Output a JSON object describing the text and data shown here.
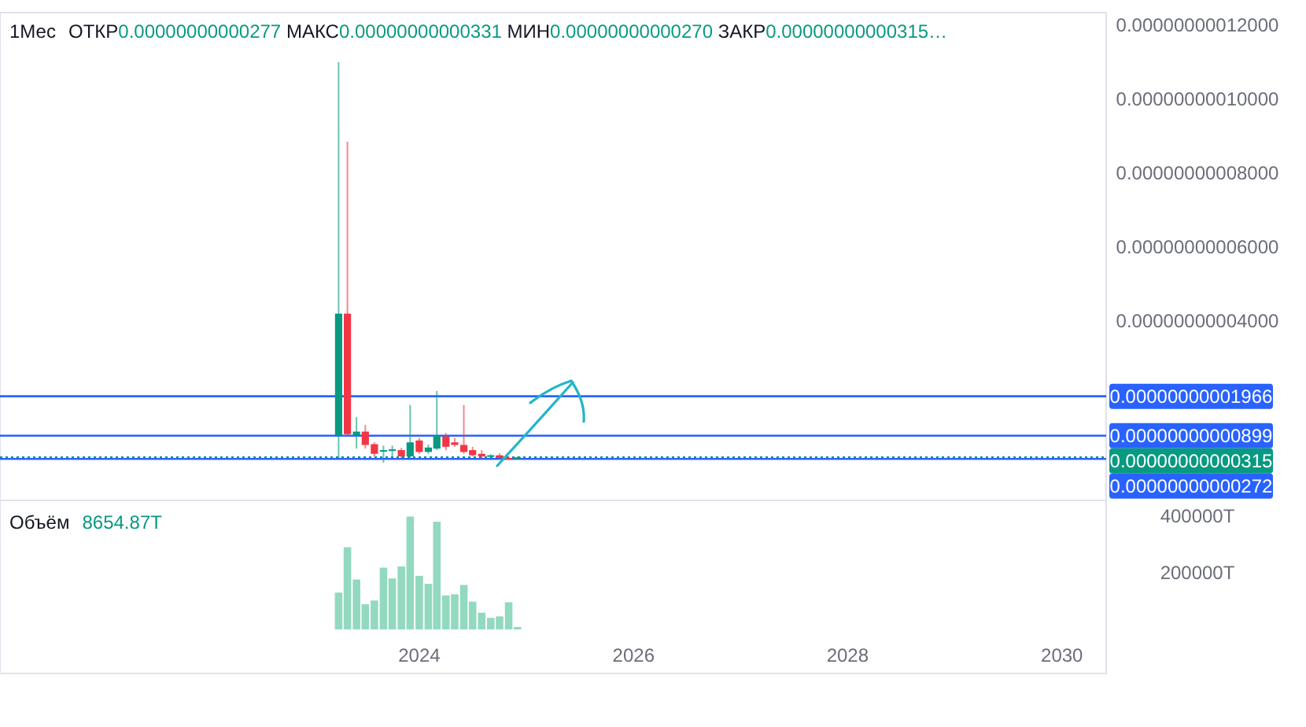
{
  "chart_data": [
    {
      "type": "candlestick",
      "title": "1Мес",
      "subtitle": "ОТКР0.00000000000277  МАКС0.00000000000331  МИН0.00000000000270  ЗАКР0.00000000000315…",
      "x": [
        "2023-04",
        "2023-05",
        "2023-06",
        "2023-07",
        "2023-08",
        "2023-09",
        "2023-10",
        "2023-11",
        "2023-12",
        "2024-01",
        "2024-02",
        "2024-03",
        "2024-04",
        "2024-05",
        "2024-06",
        "2024-07",
        "2024-08",
        "2024-09",
        "2024-10",
        "2024-11",
        "2024-12"
      ],
      "ohlc": [
        [
          9e-12,
          1.1e-10,
          3e-12,
          4.2e-11
        ],
        [
          4.2e-11,
          8.85e-11,
          9e-12,
          9.4e-12
        ],
        [
          9.1e-12,
          1.4e-11,
          5.5e-12,
          1.01e-11
        ],
        [
          1.01e-11,
          1.19e-11,
          5.5e-12,
          6.5e-12
        ],
        [
          6.7e-12,
          7.2e-12,
          3.4e-12,
          4.1e-12
        ],
        [
          4.7e-12,
          6.3e-12,
          1.7e-12,
          5.1e-12
        ],
        [
          4.9e-12,
          6.3e-12,
          3.4e-12,
          5.3e-12
        ],
        [
          5.1e-12,
          5.7e-12,
          3e-12,
          3.4e-12
        ],
        [
          3.4e-12,
          1.73e-11,
          3e-12,
          7.2e-12
        ],
        [
          7.7e-12,
          8.4e-12,
          4.1e-12,
          4.6e-12
        ],
        [
          4.6e-12,
          6.6e-12,
          4.1e-12,
          5.8e-12
        ],
        [
          5.5e-12,
          2.11e-11,
          5.1e-12,
          9.1e-12
        ],
        [
          8.8e-12,
          9.7e-12,
          5.1e-12,
          6e-12
        ],
        [
          7.2e-12,
          8.4e-12,
          6e-12,
          6.5e-12
        ],
        [
          6.5e-12,
          1.73e-11,
          4.1e-12,
          4.6e-12
        ],
        [
          5.1e-12,
          6e-12,
          3.4e-12,
          3.7e-12
        ],
        [
          4.1e-12,
          5.1e-12,
          2.8e-12,
          3.4e-12
        ],
        [
          3.4e-12,
          4e-12,
          3e-12,
          3.7e-12
        ],
        [
          3.7e-12,
          4.2e-12,
          2.6e-12,
          3e-12
        ],
        [
          3e-12,
          3.3e-12,
          2.6e-12,
          2.8e-12
        ],
        [
          2.77e-12,
          3.31e-12,
          2.7e-12,
          3.15e-12
        ]
      ],
      "colors": [
        "#089981",
        "#f23645",
        "#089981",
        "#f23645",
        "#f23645",
        "#089981",
        "#089981",
        "#f23645",
        "#089981",
        "#f23645",
        "#089981",
        "#089981",
        "#f23645",
        "#f23645",
        "#f23645",
        "#f23645",
        "#f23645",
        "#089981",
        "#f23645",
        "#f23645",
        "#089981"
      ],
      "xlim": [
        "2020-02",
        "2030-06"
      ],
      "ylim": [
        -8.5e-12,
        1.234e-10
      ],
      "yticks": [
        {
          "value": 4e-11,
          "label": "0.00000000004000"
        },
        {
          "value": 6e-11,
          "label": "0.00000000006000"
        },
        {
          "value": 8e-11,
          "label": "0.00000000008000"
        },
        {
          "value": 1e-10,
          "label": "0.00000000010000"
        },
        {
          "value": 1.2e-10,
          "label": "0.00000000012000"
        }
      ],
      "ref_lines": [
        {
          "axis": "y",
          "value": 1.966e-11,
          "label": "0.00000000001966",
          "color": "#2962ff"
        },
        {
          "axis": "y",
          "value": 8.99e-12,
          "label": "0.00000000000899",
          "color": "#2962ff"
        },
        {
          "axis": "y",
          "value": 3.15e-12,
          "label": "0.00000000000315",
          "color": "#089981",
          "line_style": "dotted"
        },
        {
          "axis": "y",
          "value": 2.72e-12,
          "label": "0.00000000000272",
          "color": "#2962ff"
        }
      ],
      "tick_labels": "y"
    },
    {
      "type": "bar",
      "title": "Объём",
      "annotations": [
        "8654.87T"
      ],
      "x": [
        "2023-04",
        "2023-05",
        "2023-06",
        "2023-07",
        "2023-08",
        "2023-09",
        "2023-10",
        "2023-11",
        "2023-12",
        "2024-01",
        "2024-02",
        "2024-03",
        "2024-04",
        "2024-05",
        "2024-06",
        "2024-07",
        "2024-08",
        "2024-09",
        "2024-10",
        "2024-11",
        "2024-12"
      ],
      "values": [
        130000,
        290000,
        176000,
        89000,
        102000,
        218000,
        180000,
        222000,
        398000,
        189000,
        161000,
        380000,
        120000,
        124000,
        157000,
        98000,
        59000,
        41000,
        46000,
        96000,
        8654.87
      ],
      "color": "#92d9bf",
      "xlim": [
        "2020-02",
        "2030-06"
      ],
      "xticks": [
        "2024",
        "2026",
        "2028",
        "2030"
      ],
      "ylim": [
        0,
        444000
      ],
      "yticks": [
        {
          "value": 200000,
          "label": "200000T"
        },
        {
          "value": 400000,
          "label": "400000T"
        }
      ]
    }
  ]
}
